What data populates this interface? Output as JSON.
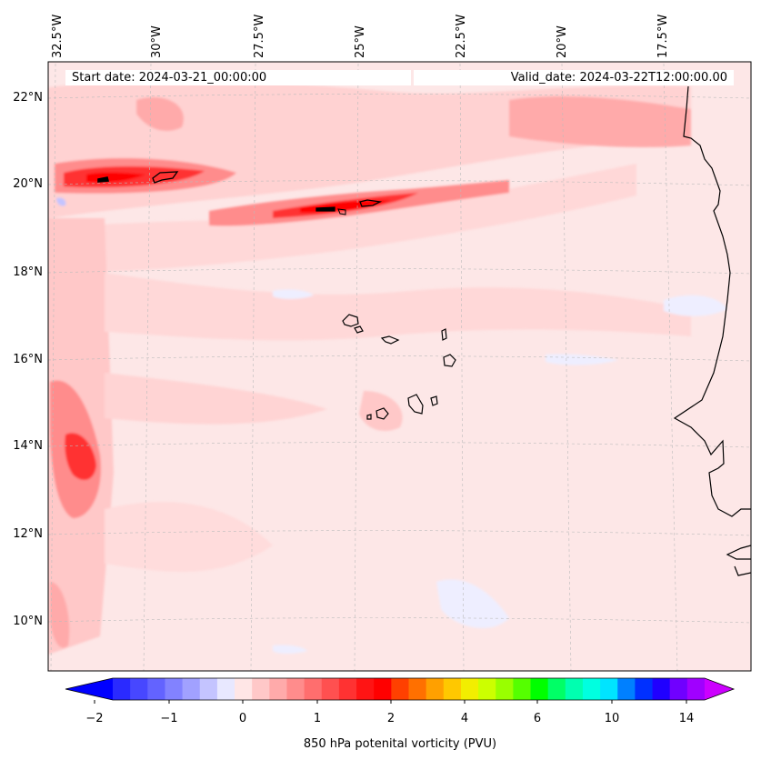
{
  "map": {
    "start_date": "Start date: 2024-03-21_00:00:00",
    "valid_date": "Valid_date: 2024-03-22T12:00:00.00",
    "lon_labels": [
      "32.5°W",
      "30°W",
      "27.5°W",
      "25°W",
      "22.5°W",
      "20°W",
      "17.5°W"
    ],
    "lat_labels": [
      "22°N",
      "20°N",
      "18°N",
      "16°N",
      "14°N",
      "12°N",
      "10°N"
    ],
    "background_color": "#fde7e7",
    "coastline_color": "#000000"
  },
  "colorbar": {
    "label": "850 hPa potenital vorticity (PVU)",
    "tick_labels": [
      "−2",
      "−1",
      "0",
      "1",
      "2",
      "4",
      "6",
      "10",
      "14"
    ],
    "low_extend_color": "#0000ff",
    "high_extend_color": "#cc00ff",
    "colors": [
      "#2a2aff",
      "#4747ff",
      "#6363ff",
      "#8282ff",
      "#a1a1ff",
      "#c4c4ff",
      "#e8e8ff",
      "#ffe6e6",
      "#ffc8c8",
      "#ffaaaa",
      "#ff8c8c",
      "#ff6e6e",
      "#ff5050",
      "#ff3232",
      "#ff1414",
      "#ff0000",
      "#ff4000",
      "#ff7000",
      "#ffa000",
      "#ffc800",
      "#f2ee00",
      "#ccff00",
      "#99ff00",
      "#55ff00",
      "#00ff00",
      "#00ff66",
      "#00ffb0",
      "#00ffe0",
      "#00e4ff",
      "#0080ff",
      "#0030ff",
      "#2000ff",
      "#7000ff",
      "#a000ff"
    ]
  }
}
